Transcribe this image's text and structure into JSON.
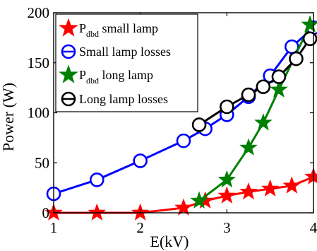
{
  "chart_data": {
    "type": "line",
    "xlabel": "E(kV)",
    "ylabel": "Power (W)",
    "xlim": [
      1,
      4
    ],
    "ylim": [
      0,
      200
    ],
    "xticks": [
      "1",
      "2",
      "3",
      "4"
    ],
    "yticks": [
      "0",
      "50",
      "100",
      "150",
      "200"
    ],
    "grid": false,
    "legend_position": "top-left",
    "series": [
      {
        "name": "P",
        "name_sub": "dbd",
        "name_rest": " small lamp",
        "color": "#ff0000",
        "marker": "star",
        "x": [
          1.0,
          1.5,
          2.0,
          2.5,
          2.75,
          3.0,
          3.25,
          3.5,
          3.75,
          4.0
        ],
        "y": [
          0,
          0,
          0,
          5,
          12,
          17,
          21,
          24,
          27,
          36
        ]
      },
      {
        "name": "Small lamp losses",
        "color": "#0000ff",
        "marker": "circle",
        "x": [
          1.0,
          1.5,
          2.0,
          2.5,
          2.75,
          3.0,
          3.25,
          3.5,
          3.75,
          4.0
        ],
        "y": [
          19,
          33,
          52,
          72,
          84,
          98,
          116,
          137,
          166,
          185
        ]
      },
      {
        "name": "P",
        "name_sub": "dbd",
        "name_rest": " long lamp",
        "color": "#008000",
        "marker": "star",
        "x": [
          2.68,
          3.0,
          3.25,
          3.42,
          3.6,
          3.96
        ],
        "y": [
          12,
          33,
          65,
          90,
          123,
          188
        ]
      },
      {
        "name": "Long lamp losses",
        "color": "#000000",
        "marker": "circle",
        "x": [
          2.68,
          3.0,
          3.25,
          3.42,
          3.6,
          3.8,
          3.96
        ],
        "y": [
          88,
          106,
          118,
          126,
          136,
          154,
          174
        ]
      }
    ]
  }
}
